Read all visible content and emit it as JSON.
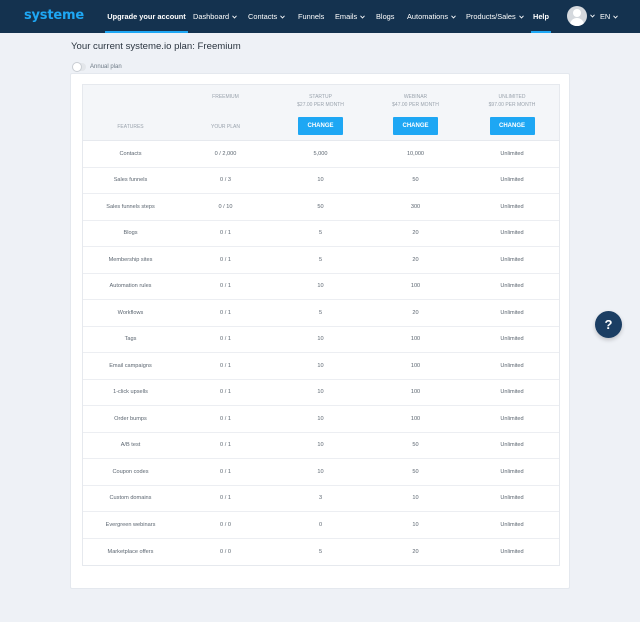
{
  "nav": {
    "logo": "systeme",
    "upgrade": "Upgrade your account",
    "items": [
      {
        "label": "Dashboard",
        "has_dropdown": true
      },
      {
        "label": "Contacts",
        "has_dropdown": true
      },
      {
        "label": "Funnels",
        "has_dropdown": false
      },
      {
        "label": "Emails",
        "has_dropdown": true
      },
      {
        "label": "Blogs",
        "has_dropdown": false
      },
      {
        "label": "Automations",
        "has_dropdown": true
      },
      {
        "label": "Products/Sales",
        "has_dropdown": true
      }
    ],
    "help": "Help",
    "language": "EN"
  },
  "page": {
    "title": "Your current systeme.io plan: Freemium",
    "annual_toggle": "Annual plan"
  },
  "plans": {
    "freemium": {
      "name": "FREEMIUM",
      "label": "YOUR PLAN"
    },
    "startup": {
      "name": "STARTUP",
      "price": "$27.00 PER MONTH",
      "button": "CHANGE"
    },
    "webinar": {
      "name": "WEBINAR",
      "price": "$47.00 PER MONTH",
      "button": "CHANGE"
    },
    "unlimited": {
      "name": "UNLIMITED",
      "price": "$97.00 PER MONTH",
      "button": "CHANGE"
    },
    "features_header": "FEATURES"
  },
  "rows": [
    {
      "feature": "Contacts",
      "freemium": "0 / 2,000",
      "startup": "5,000",
      "webinar": "10,000",
      "unlimited": "Unlimited"
    },
    {
      "feature": "Sales funnels",
      "freemium": "0 / 3",
      "startup": "10",
      "webinar": "50",
      "unlimited": "Unlimited"
    },
    {
      "feature": "Sales funnels steps",
      "freemium": "0 / 10",
      "startup": "50",
      "webinar": "300",
      "unlimited": "Unlimited"
    },
    {
      "feature": "Blogs",
      "freemium": "0 / 1",
      "startup": "5",
      "webinar": "20",
      "unlimited": "Unlimited"
    },
    {
      "feature": "Membership sites",
      "freemium": "0 / 1",
      "startup": "5",
      "webinar": "20",
      "unlimited": "Unlimited"
    },
    {
      "feature": "Automation rules",
      "freemium": "0 / 1",
      "startup": "10",
      "webinar": "100",
      "unlimited": "Unlimited"
    },
    {
      "feature": "Workflows",
      "freemium": "0 / 1",
      "startup": "5",
      "webinar": "20",
      "unlimited": "Unlimited"
    },
    {
      "feature": "Tags",
      "freemium": "0 / 1",
      "startup": "10",
      "webinar": "100",
      "unlimited": "Unlimited"
    },
    {
      "feature": "Email campaigns",
      "freemium": "0 / 1",
      "startup": "10",
      "webinar": "100",
      "unlimited": "Unlimited"
    },
    {
      "feature": "1-click upsells",
      "freemium": "0 / 1",
      "startup": "10",
      "webinar": "100",
      "unlimited": "Unlimited"
    },
    {
      "feature": "Order bumps",
      "freemium": "0 / 1",
      "startup": "10",
      "webinar": "100",
      "unlimited": "Unlimited"
    },
    {
      "feature": "A/B test",
      "freemium": "0 / 1",
      "startup": "10",
      "webinar": "50",
      "unlimited": "Unlimited"
    },
    {
      "feature": "Coupon codes",
      "freemium": "0 / 1",
      "startup": "10",
      "webinar": "50",
      "unlimited": "Unlimited"
    },
    {
      "feature": "Custom domains",
      "freemium": "0 / 1",
      "startup": "3",
      "webinar": "10",
      "unlimited": "Unlimited"
    },
    {
      "feature": "Evergreen webinars",
      "freemium": "0 / 0",
      "startup": "0",
      "webinar": "10",
      "unlimited": "Unlimited"
    },
    {
      "feature": "Marketplace offers",
      "freemium": "0 / 0",
      "startup": "5",
      "webinar": "20",
      "unlimited": "Unlimited"
    }
  ],
  "help_button": "?",
  "colors": {
    "nav_bg": "#14324f",
    "accent": "#1ea7f4",
    "help_bg": "#1b3e63",
    "page_bg": "#eef1f6"
  }
}
